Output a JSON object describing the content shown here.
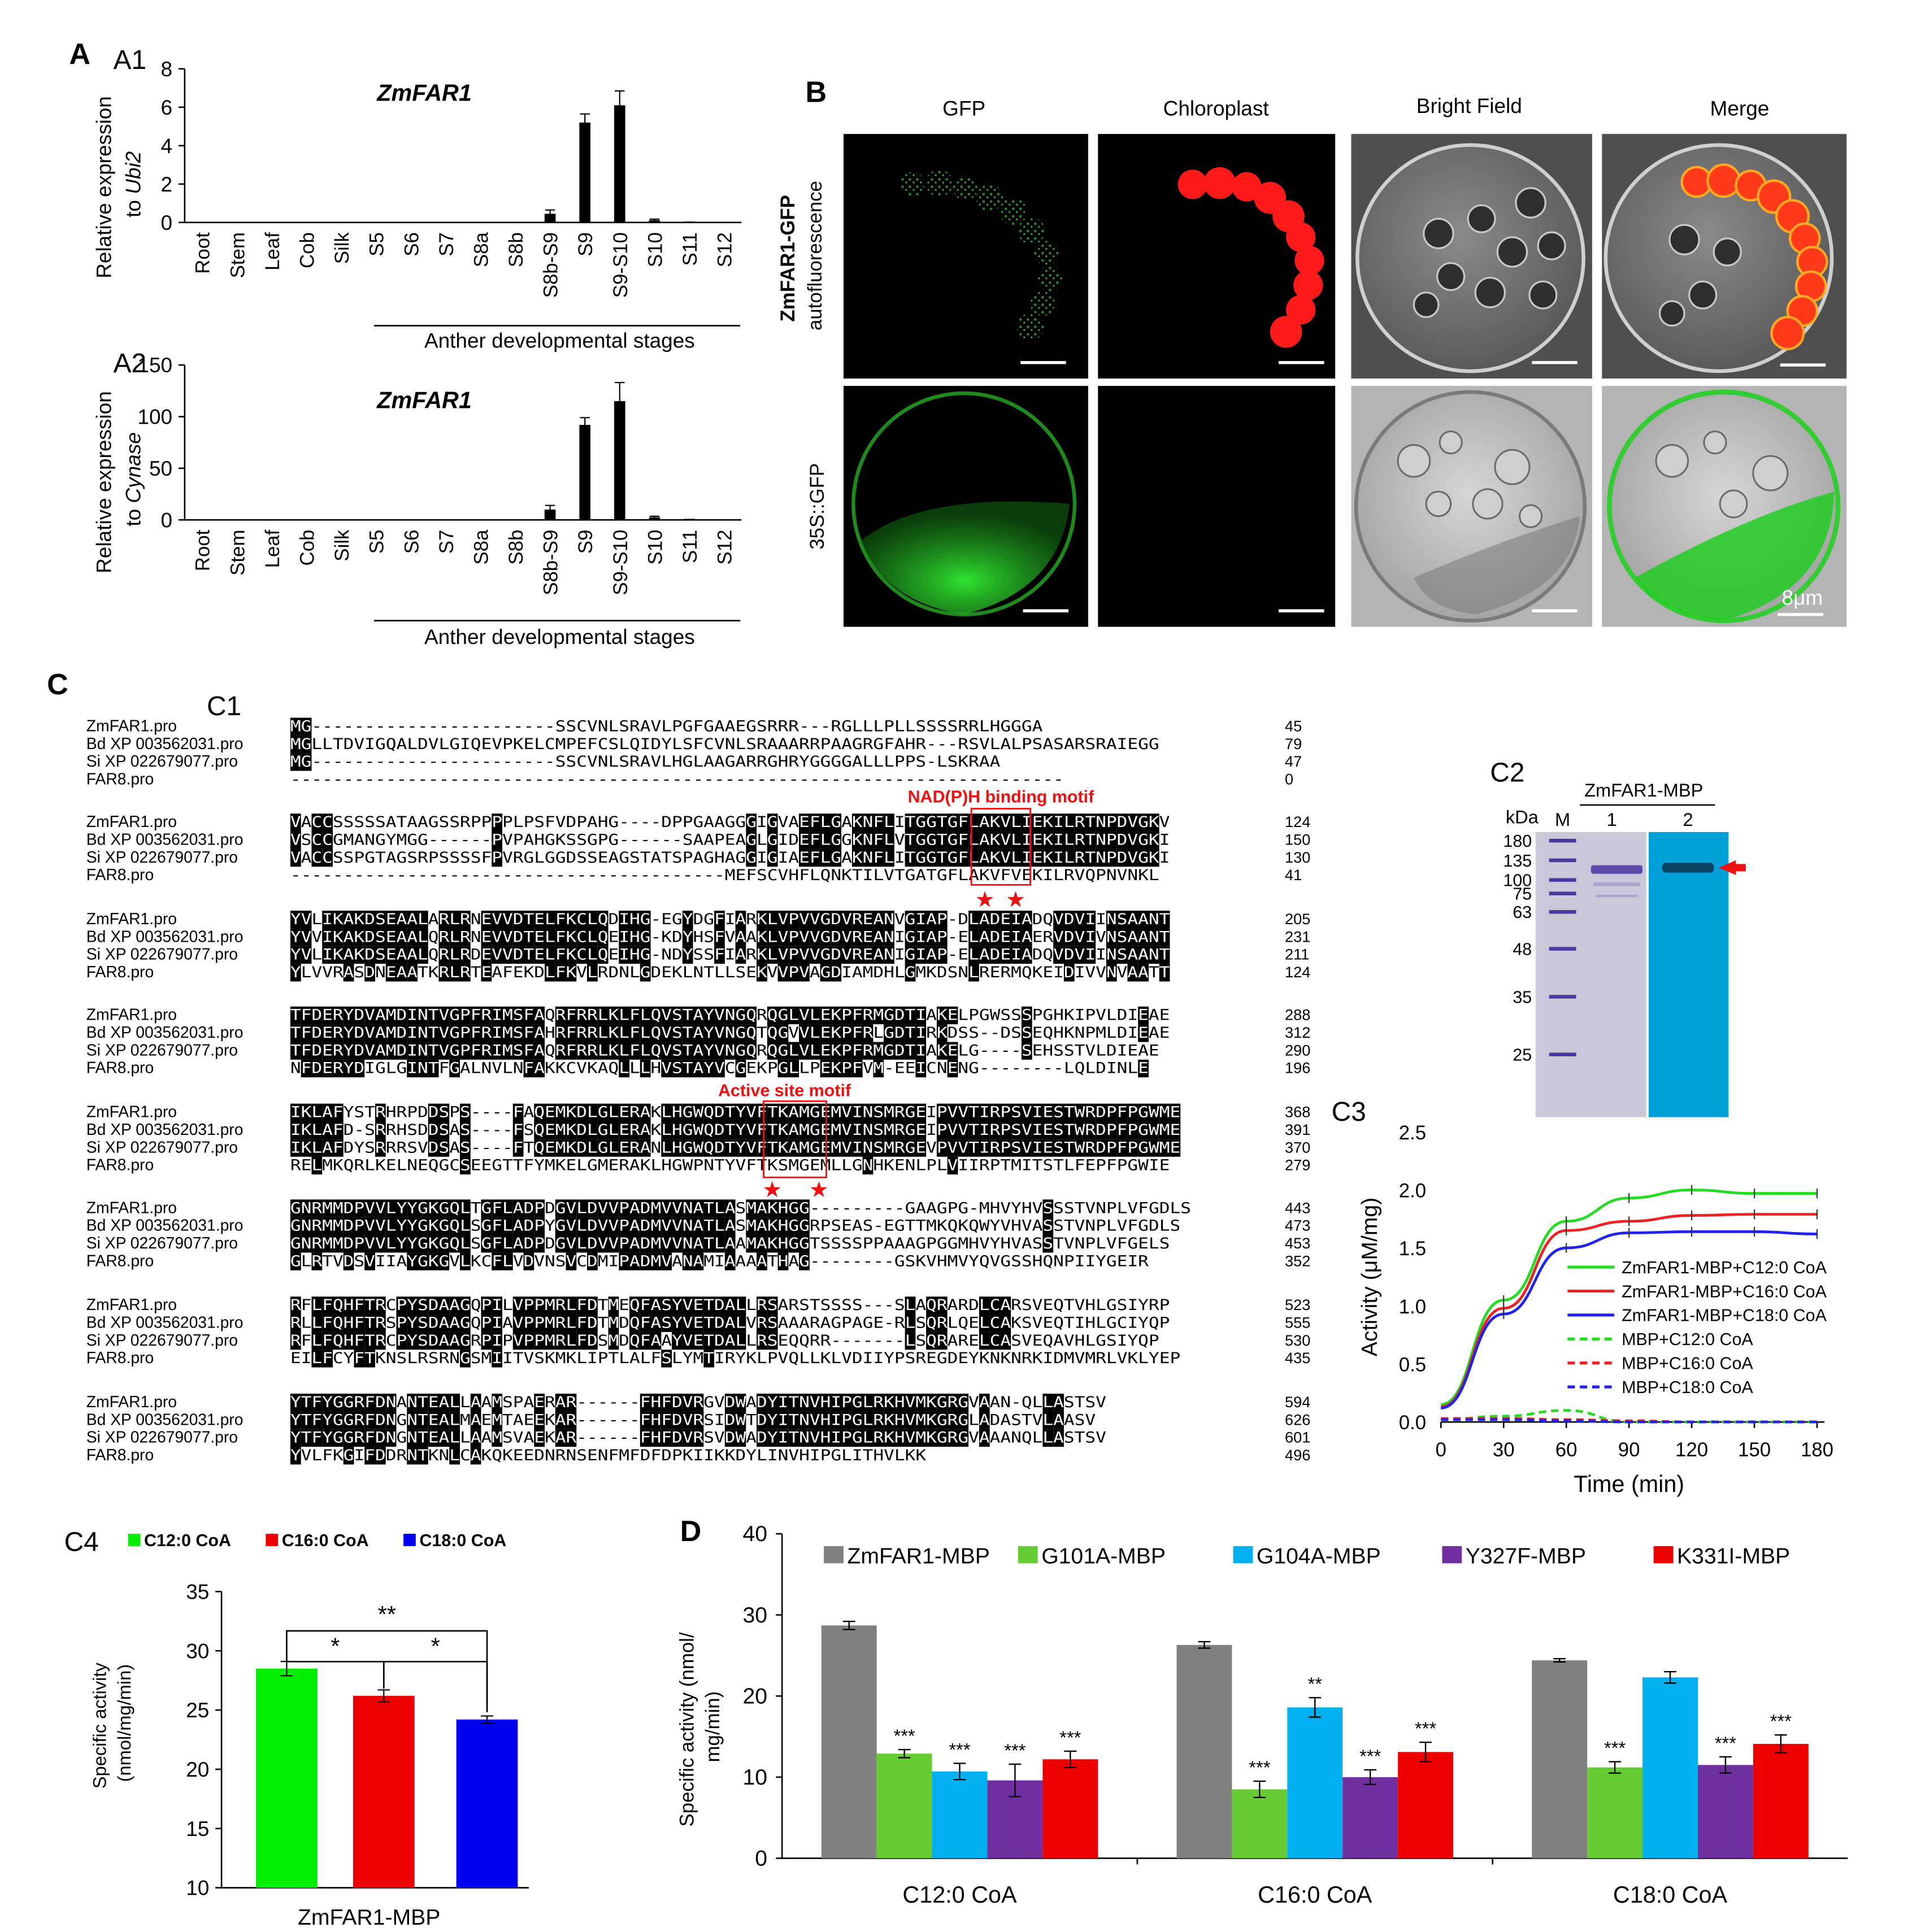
{
  "panel_letters": {
    "A": "A",
    "A1": "A1",
    "A2": "A2",
    "B": "B",
    "C": "C",
    "C1": "C1",
    "C2": "C2",
    "C3": "C3",
    "C4": "C4",
    "D": "D"
  },
  "panel_a": {
    "gene_label": "ZmFAR1",
    "categories": [
      "Root",
      "Stem",
      "Leaf",
      "Cob",
      "Silk",
      "S5",
      "S6",
      "S7",
      "S8a",
      "S8b",
      "S8b-S9",
      "S9",
      "S9-S10",
      "S10",
      "S11",
      "S12"
    ],
    "group_label": "Anther developmental stages",
    "a1_ylabel_line1": "Relative expression",
    "a1_ylabel_line2_prefix": "to ",
    "a1_ylabel_line2_italic": "Ubi2",
    "a2_ylabel_line1": "Relative expression",
    "a2_ylabel_line2_prefix": "to ",
    "a2_ylabel_line2_italic": "Cynase"
  },
  "panel_b": {
    "col_headers": [
      "GFP",
      "Chloroplast",
      "Bright Field",
      "Merge"
    ],
    "row1_label_bold": "ZmFAR1-GFP",
    "row1_label": "autofluorescence",
    "row2_label": "35S::GFP",
    "scale_label": "8μm"
  },
  "panel_c1": {
    "motif1_label": "NAD(P)H binding motif",
    "motif2_label": "Active site motif",
    "blocks": [
      {
        "rows": [
          {
            "name": "ZmFAR1.pro",
            "seq": "MG-----------------------SSCVNLSRAVLPGFGAAEGSRRR---RGLLLPLLSSSSRRLHGGGA",
            "num": "45"
          },
          {
            "name": "Bd XP 003562031.pro",
            "seq": "MGLLTDVIGQALDVLGIQEVPKELCMPEFCSLQIDYLSFCVNLSRAAARRPAAGRGFAHR---RSVLALPSASARSRAIEGG",
            "num": "79"
          },
          {
            "name": "Si XP 022679077.pro",
            "seq": "MG-----------------------SSCVNLSRAVLHGLAAGARRGHRYGGGGALLLPPS-LSKRAA",
            "num": "47"
          },
          {
            "name": "FAR8.pro",
            "seq": "-------------------------------------------------------------------------",
            "num": "0"
          }
        ]
      },
      {
        "rows": [
          {
            "name": "ZmFAR1.pro",
            "seq": "VACCSSSSSATAAGSSRPPPPLPSFVDPAHG----DPPGAAGGGIGVAEFLGAKNFLITGGTGFLAKVLIEKILRTNPDVGKV",
            "num": "124"
          },
          {
            "name": "Bd XP 003562031.pro",
            "seq": "VSCCGMANGYMGG------PVPAHGKSSGPG------SAAPEAGLGIDEFLGGKNFLVTGGTGFLAKVLIEKILRTNPDVGKI",
            "num": "150"
          },
          {
            "name": "Si XP 022679077.pro",
            "seq": "VACCSSPGTAGSRPSSSSFPVRGLGGDSSEAGSTATSPAGHAGGIGIAEFLGAKNFLITGGTGFLAKVLIEKILRTNPDVGKI",
            "num": "130"
          },
          {
            "name": "FAR8.pro",
            "seq": "-----------------------------------------MEFSCVHFLQNKTILVTGATGFLAKVFVEKILRVQPNVNKL",
            "num": "41"
          }
        ]
      },
      {
        "rows": [
          {
            "name": "ZmFAR1.pro",
            "seq": "YVLIKAKDSEAALARLRNEVVDTELFKCLQDIHG-EGYDGFIARKLVPVVGDVREANVGIAP-DLADEIADQVDVIINSAANT",
            "num": "205"
          },
          {
            "name": "Bd XP 003562031.pro",
            "seq": "YVVIKAKDSEAALQRLRNEVVDTELFKCLQEIHG-KDYHSFVAAKLVPVVGDVREANIGIAP-ELADEIAERVDVIVNSAANT",
            "num": "231"
          },
          {
            "name": "Si XP 022679077.pro",
            "seq": "YVLIKAKDSEAALQRLRDEVVDTELFKCLQEIHG-NDYSSFIARKLVPVVGDVREANIGIAP-ELADEIADQVDVIINSAANT",
            "num": "211"
          },
          {
            "name": "FAR8.pro",
            "seq": "YLVVRASDNEAATKRLRTEAFEKDLFKVLRDNLGDEKLNTLLSEKVVPVAGDIAMDHLGMKDSNLRERMQKEIDIVVNVAATT",
            "num": "124"
          }
        ]
      },
      {
        "rows": [
          {
            "name": "ZmFAR1.pro",
            "seq": "TFDERYDVAMDINTVGPFRIMSFAQRFRRLKLFLQVSTAYVNGQRQGLVLEKPFRMGDTIAKELPGWSSSPGHKIPVLDIEAE",
            "num": "288"
          },
          {
            "name": "Bd XP 003562031.pro",
            "seq": "TFDERYDVAMDINTVGPFRIMSFAHRFRRLKLFLQVSTAYVNGQTQGVVLEKPFRLGDTIRKDSS--DSSEQHKNPMLDIEAE",
            "num": "312"
          },
          {
            "name": "Si XP 022679077.pro",
            "seq": "TFDERYDVAMDINTVGPFRIMSFAQRFRRLKLFLQVSTAYVNGQRQGLVLEKPFRMGDTIAKELG----SEHSSTVLDIEAE",
            "num": "290"
          },
          {
            "name": "FAR8.pro",
            "seq": "NFDERYDIGLGINTFGALNVLNFAKKCVKAQLLLHVSTAYVCGEKPGLLPEKPFVM-EEICNENG--------LQLDINLE",
            "num": "196"
          }
        ]
      },
      {
        "rows": [
          {
            "name": "ZmFAR1.pro",
            "seq": "IKLAFYSTRHRPDDSPS----FAQEMKDLGLERAKLHGWQDTYVFTKAMGEMVINSMRGEIPVVTIRPSVIESTWRDPFPGWME",
            "num": "368"
          },
          {
            "name": "Bd XP 003562031.pro",
            "seq": "IKLAFD-SRRHSDDSAS----FSQEMKDLGLERAKLHGWQDTYVFTKAMGEMVINSMRGEIPVVTIRPSVIESTWRDPFPGWME",
            "num": "391"
          },
          {
            "name": "Si XP 022679077.pro",
            "seq": "IKLAFDYSRRRSVDSAS----FTQEMKDLGLERANLHGWQDTYVFTKAMGEMVINSMRGEVPVVTIRPSVIESTWRDPFPGWME",
            "num": "370"
          },
          {
            "name": "FAR8.pro",
            "seq": "RELMKQRLKELNEQGCSEEGTTFYMKELGMERAKLHGWPNTYVFTKSMGEMLLGNHKENLPLVIIRPTMITSTLFEPFPGWIE",
            "num": "279"
          }
        ]
      },
      {
        "rows": [
          {
            "name": "ZmFAR1.pro",
            "seq": "GNRMMDPVVLYYGKGQLTGFLADPDGVLDVVPADMVVNATLASMAKHGG---------GAAGPG-MHVYHVSSSTVNPLVFGDLS",
            "num": "443"
          },
          {
            "name": "Bd XP 003562031.pro",
            "seq": "GNRMMDPVVLYYGKGQLSGFLADPYGVLDVVPADMVVNATLASMAKHGGRPSEAS-EGTTMKQKQWYVHVASSTVNPLVFGDLS",
            "num": "473"
          },
          {
            "name": "Si XP 022679077.pro",
            "seq": "GNRMMDPVVLYYGKGQLSGFLADPDGVLDVVPADMVVNATLAAMAKHGGTSSSSPPAAAGPGGMHVYHVASSTVNPLVFGELS",
            "num": "453"
          },
          {
            "name": "FAR8.pro",
            "seq": "GLRTVDSVIIAYGKGVLKCFLVDVNSVCDMIPADMVANAMIAAAATHAG--------GSKVHMVYQVGSSHQNPIIYGEIR",
            "num": "352"
          }
        ]
      },
      {
        "rows": [
          {
            "name": "ZmFAR1.pro",
            "seq": "RFLFQHFTRCPYSDAAGQPILVPPMRLFDTMEQFASYVETDALLRSARSTSSSS---SLAQRARDLCARSVEQTVHLGSIYRP",
            "num": "523"
          },
          {
            "name": "Bd XP 003562031.pro",
            "seq": "RLLFQHFTRSPYSDAAGQPIAVPPMRLFDTMDQFASYVETDALVRSAAARAGPAGE-RLSQRLQELCAKSVEQTIHLGCIYQP",
            "num": "555"
          },
          {
            "name": "Si XP 022679077.pro",
            "seq": "RFLFQHFTRCPYSDAAGRPIPVPPMRLFDSMDQFAAYVETDALLRSEQQRR-------LSQRARELCASVEQAVHLGSIYQP",
            "num": "530"
          },
          {
            "name": "FAR8.pro",
            "seq": "EILFCYFTKNSLRSRNGSMIITVSKMKLIPTLALFSLYMTIRYKLPVQLLKLVDIIYPSREGDEYKNKNRKIDMVMRLVKLYEP",
            "num": "435"
          }
        ]
      },
      {
        "rows": [
          {
            "name": "ZmFAR1.pro",
            "seq": "YTFYGGRFDNANTEALLAAMSPAERAR------FHFDVRGVDWADYITNVHIPGLRKHVMKGRGVAAN-QLLASTSV",
            "num": "594"
          },
          {
            "name": "Bd XP 003562031.pro",
            "seq": "YTFYGGRFDNGNTEALMAEMTAEEKAR------FHFDVRSIDWTDYITNVHIPGLRKHVMKGRGLADASTVLAASV",
            "num": "626"
          },
          {
            "name": "Si XP 022679077.pro",
            "seq": "YTFYGGRFDNGNTEALLAAMSVAEKAR------FHFDVRSVDWADYITNVHIPGLRKHVMKGRGVAAANQLLASTSV",
            "num": "601"
          },
          {
            "name": "FAR8.pro",
            "seq": "YVLFKGIFDDRNTKNLCAKQKEEDNRNSENFMFDFDPKIIKKDYLINVHIPGLITHVLKK",
            "num": "496"
          }
        ]
      }
    ]
  },
  "panel_c2": {
    "title": "ZmFAR1-MBP",
    "kda_label": "kDa",
    "lane_labels": [
      "M",
      "1",
      "2"
    ],
    "markers": [
      "180",
      "135",
      "100",
      "75",
      "63",
      "48",
      "35",
      "25"
    ]
  },
  "panel_c4": {
    "legend": [
      "C12:0 CoA",
      "C16:0 CoA",
      "C18:0 CoA"
    ],
    "ylabel_line1": "Specific activity",
    "ylabel_line2": "(nmol/mg/min)",
    "xlabel": "ZmFAR1-MBP",
    "sig_labels": [
      "**",
      "*",
      "*"
    ]
  },
  "chart_data": [
    {
      "id": "A1",
      "type": "bar",
      "title": "ZmFAR1",
      "ylabel": "Relative expression to Ubi2",
      "xlabel": "Anther developmental stages",
      "categories": [
        "Root",
        "Stem",
        "Leaf",
        "Cob",
        "Silk",
        "S5",
        "S6",
        "S7",
        "S8a",
        "S8b",
        "S8b-S9",
        "S9",
        "S9-S10",
        "S10",
        "S11",
        "S12"
      ],
      "values": [
        0,
        0,
        0,
        0,
        0,
        0,
        0,
        0,
        0,
        0.02,
        0.45,
        5.2,
        6.1,
        0.12,
        0.05,
        0.02
      ],
      "errors": [
        0,
        0,
        0,
        0,
        0,
        0,
        0,
        0,
        0,
        0,
        0.2,
        0.45,
        0.75,
        0.05,
        0,
        0
      ],
      "ylim": [
        0,
        8
      ],
      "yticks": [
        0,
        2,
        4,
        6,
        8
      ],
      "color": "#000000"
    },
    {
      "id": "A2",
      "type": "bar",
      "title": "ZmFAR1",
      "ylabel": "Relative expression to Cynase",
      "xlabel": "Anther developmental stages",
      "categories": [
        "Root",
        "Stem",
        "Leaf",
        "Cob",
        "Silk",
        "S5",
        "S6",
        "S7",
        "S8a",
        "S8b",
        "S8b-S9",
        "S9",
        "S9-S10",
        "S10",
        "S11",
        "S12"
      ],
      "values": [
        0,
        0,
        0,
        0,
        0,
        0,
        0,
        0,
        0,
        0.5,
        10,
        92,
        115,
        2.5,
        1,
        0.5
      ],
      "errors": [
        0,
        0,
        0,
        0,
        0,
        0,
        0,
        0,
        0,
        0,
        4,
        7,
        18,
        1,
        0,
        0
      ],
      "ylim": [
        0,
        150
      ],
      "yticks": [
        0,
        50,
        100,
        150
      ],
      "color": "#000000"
    },
    {
      "id": "C3",
      "type": "line",
      "xlabel": "Time (min)",
      "ylabel": "Activity (μM/mg)",
      "x": [
        0,
        30,
        60,
        90,
        120,
        150,
        180
      ],
      "xlim": [
        0,
        180
      ],
      "ylim": [
        0,
        2.5
      ],
      "xticks": [
        0,
        30,
        60,
        90,
        120,
        150,
        180
      ],
      "yticks": [
        "0.0",
        "0.5",
        "1.0",
        "1.5",
        "2.0",
        "2.5"
      ],
      "legend_position": "inside-right",
      "series": [
        {
          "name": "ZmFAR1-MBP+C12:0 CoA",
          "color": "#22dd22",
          "dash": false,
          "values": [
            0.15,
            1.05,
            1.73,
            1.93,
            2.0,
            1.97,
            1.97
          ]
        },
        {
          "name": "ZmFAR1-MBP+C16:0 CoA",
          "color": "#ee2222",
          "dash": false,
          "values": [
            0.13,
            0.98,
            1.65,
            1.73,
            1.78,
            1.79,
            1.79
          ]
        },
        {
          "name": "ZmFAR1-MBP+C18:0 CoA",
          "color": "#2222ee",
          "dash": false,
          "values": [
            0.12,
            0.93,
            1.5,
            1.63,
            1.64,
            1.64,
            1.62
          ]
        },
        {
          "name": "MBP+C12:0 CoA",
          "color": "#22dd22",
          "dash": true,
          "values": [
            0.02,
            0.05,
            0.1,
            0.0,
            0.0,
            0.0,
            0.0
          ]
        },
        {
          "name": "MBP+C16:0 CoA",
          "color": "#ee2222",
          "dash": true,
          "values": [
            0.03,
            0.03,
            0.02,
            0.01,
            0.0,
            0.0,
            0.0
          ]
        },
        {
          "name": "MBP+C18:0 CoA",
          "color": "#2222ee",
          "dash": true,
          "values": [
            0.02,
            0.02,
            0.01,
            0.0,
            0.0,
            0.0,
            0.0
          ]
        }
      ]
    },
    {
      "id": "C4",
      "type": "bar",
      "xlabel": "ZmFAR1-MBP",
      "ylabel": "Specific activity (nmol/mg/min)",
      "categories": [
        "C12:0 CoA",
        "C16:0 CoA",
        "C18:0 CoA"
      ],
      "values": [
        28.5,
        26.2,
        24.2
      ],
      "errors": [
        0.6,
        0.5,
        0.3
      ],
      "colors": [
        "#00ee00",
        "#ee0000",
        "#0000ee"
      ],
      "ylim": [
        10,
        35
      ],
      "yticks": [
        10,
        15,
        20,
        25,
        30,
        35
      ],
      "significance": [
        {
          "from": 0,
          "to": 2,
          "label": "**"
        },
        {
          "from": 0,
          "to": 1,
          "label": "*"
        },
        {
          "from": 1,
          "to": 2,
          "label": "*"
        }
      ]
    },
    {
      "id": "D",
      "type": "bar",
      "ylabel": "Specific activity (nmol/mg/min)",
      "categories": [
        "C12:0 CoA",
        "C16:0 CoA",
        "C18:0 CoA"
      ],
      "ylim": [
        0,
        40
      ],
      "yticks": [
        0,
        10,
        20,
        30,
        40
      ],
      "legend_position": "top",
      "series": [
        {
          "name": "ZmFAR1-MBP",
          "color": "#808080",
          "values": [
            28.7,
            26.3,
            24.4
          ],
          "errors": [
            0.5,
            0.4,
            0.2
          ],
          "sig": [
            "",
            "",
            ""
          ]
        },
        {
          "name": "G101A-MBP",
          "color": "#66cc33",
          "values": [
            12.9,
            8.5,
            11.2
          ],
          "errors": [
            0.5,
            1.0,
            0.7
          ],
          "sig": [
            "***",
            "***",
            "***"
          ]
        },
        {
          "name": "G104A-MBP",
          "color": "#00b0f0",
          "values": [
            10.7,
            18.6,
            22.3
          ],
          "errors": [
            1.0,
            1.2,
            0.7
          ],
          "sig": [
            "***",
            "**",
            ""
          ]
        },
        {
          "name": "Y327F-MBP",
          "color": "#7030a0",
          "values": [
            9.6,
            10.0,
            11.5
          ],
          "errors": [
            2.0,
            0.9,
            1.0
          ],
          "sig": [
            "***",
            "***",
            "***"
          ]
        },
        {
          "name": "K331I-MBP",
          "color": "#ee0000",
          "values": [
            12.2,
            13.1,
            14.1
          ],
          "errors": [
            1.0,
            1.2,
            1.1
          ],
          "sig": [
            "***",
            "***",
            "***"
          ]
        }
      ]
    }
  ]
}
